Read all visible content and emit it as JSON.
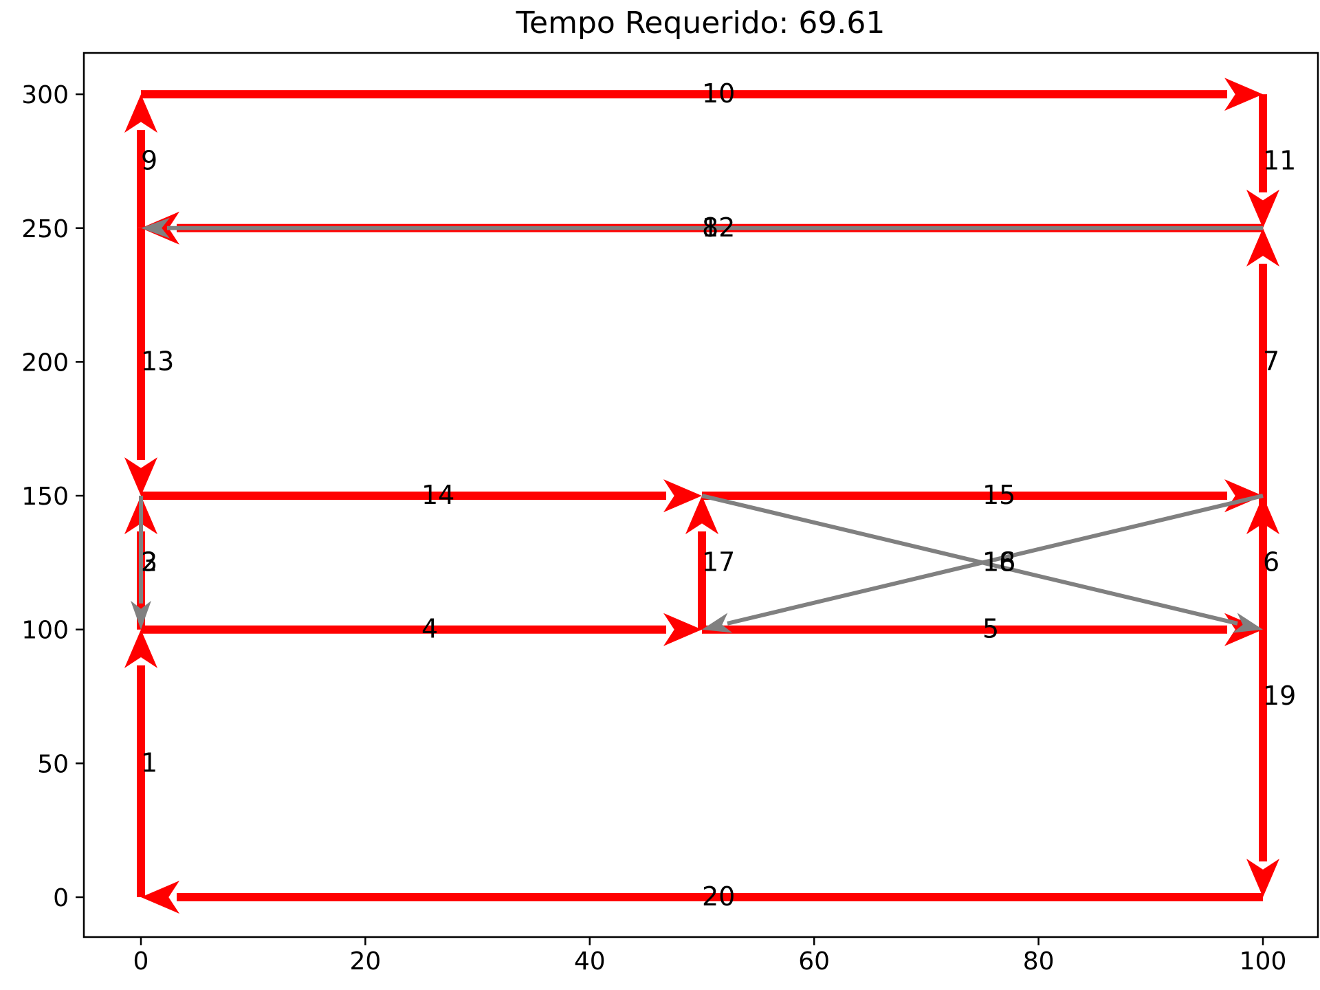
{
  "chart_data": {
    "type": "directed-graph",
    "title": "Tempo Requerido: 69.61",
    "xlabel": "",
    "ylabel": "",
    "xlim": [
      -5,
      105
    ],
    "ylim": [
      -15,
      315
    ],
    "xticks": [
      0,
      20,
      40,
      60,
      80,
      100
    ],
    "yticks": [
      0,
      50,
      100,
      150,
      200,
      250,
      300
    ],
    "grid": false,
    "colors": {
      "active": "#ff0000",
      "inactive": "#808080"
    },
    "edges": [
      {
        "label": "1",
        "from": [
          0,
          0
        ],
        "to": [
          0,
          100
        ],
        "status": "active"
      },
      {
        "label": "2",
        "from": [
          0,
          100
        ],
        "to": [
          0,
          150
        ],
        "status": "active"
      },
      {
        "label": "3",
        "from": [
          0,
          150
        ],
        "to": [
          0,
          100
        ],
        "status": "inactive"
      },
      {
        "label": "4",
        "from": [
          0,
          100
        ],
        "to": [
          50,
          100
        ],
        "status": "active"
      },
      {
        "label": "5",
        "from": [
          50,
          100
        ],
        "to": [
          100,
          100
        ],
        "status": "active"
      },
      {
        "label": "6",
        "from": [
          100,
          100
        ],
        "to": [
          100,
          150
        ],
        "status": "active"
      },
      {
        "label": "7",
        "from": [
          100,
          150
        ],
        "to": [
          100,
          250
        ],
        "status": "active"
      },
      {
        "label": "8",
        "from": [
          100,
          250
        ],
        "to": [
          0,
          250
        ],
        "status": "active"
      },
      {
        "label": "9",
        "from": [
          0,
          250
        ],
        "to": [
          0,
          300
        ],
        "status": "active"
      },
      {
        "label": "10",
        "from": [
          0,
          300
        ],
        "to": [
          100,
          300
        ],
        "status": "active"
      },
      {
        "label": "11",
        "from": [
          100,
          300
        ],
        "to": [
          100,
          250
        ],
        "status": "active"
      },
      {
        "label": "12",
        "from": [
          100,
          250
        ],
        "to": [
          0,
          250
        ],
        "status": "inactive"
      },
      {
        "label": "13",
        "from": [
          0,
          250
        ],
        "to": [
          0,
          150
        ],
        "status": "active"
      },
      {
        "label": "14",
        "from": [
          0,
          150
        ],
        "to": [
          50,
          150
        ],
        "status": "active"
      },
      {
        "label": "15",
        "from": [
          50,
          150
        ],
        "to": [
          100,
          150
        ],
        "status": "active"
      },
      {
        "label": "16",
        "from": [
          50,
          150
        ],
        "to": [
          100,
          100
        ],
        "status": "inactive"
      },
      {
        "label": "17",
        "from": [
          50,
          100
        ],
        "to": [
          50,
          150
        ],
        "status": "active"
      },
      {
        "label": "18",
        "from": [
          100,
          150
        ],
        "to": [
          50,
          100
        ],
        "status": "inactive"
      },
      {
        "label": "19",
        "from": [
          100,
          150
        ],
        "to": [
          100,
          0
        ],
        "status": "active"
      },
      {
        "label": "20",
        "from": [
          100,
          0
        ],
        "to": [
          0,
          0
        ],
        "status": "active"
      }
    ]
  }
}
